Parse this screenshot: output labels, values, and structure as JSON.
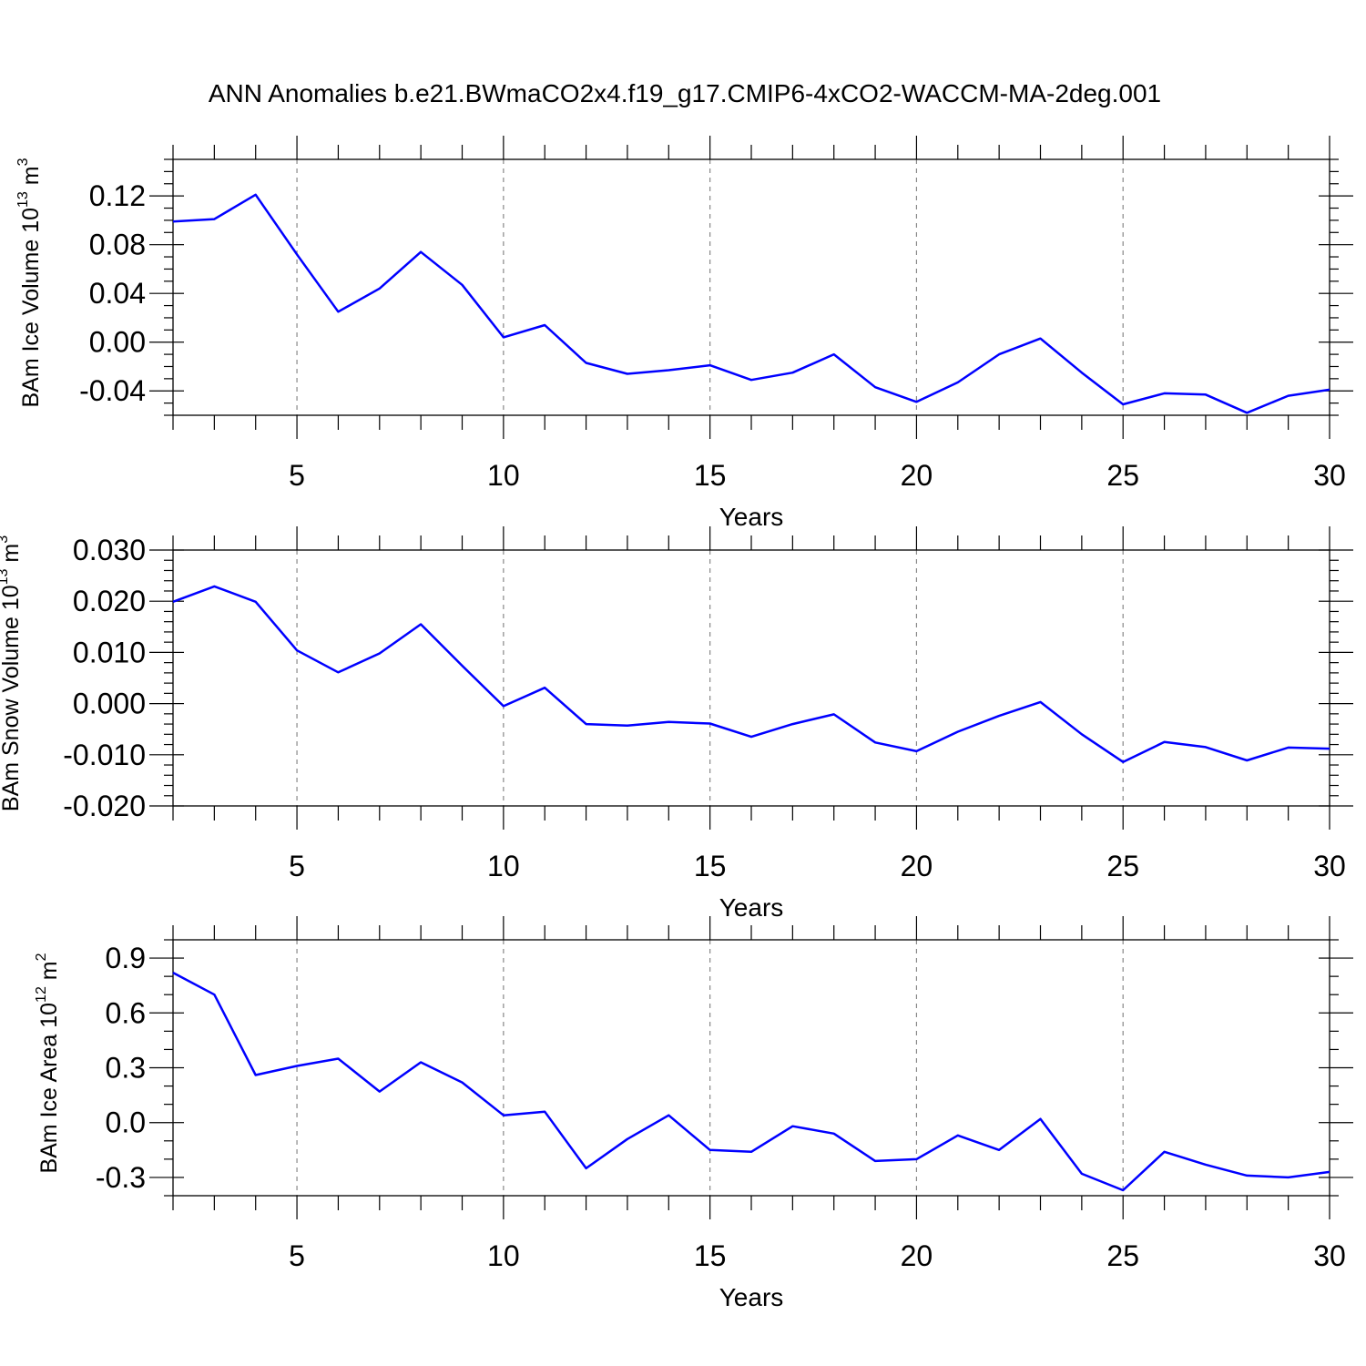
{
  "figure": {
    "title": "ANN Anomalies b.e21.BWmaCO2x4.f19_g17.CMIP6-4xCO2-WACCM-MA-2deg.001"
  },
  "colors": {
    "series": "#0000ff",
    "grid": "#888888",
    "axis": "#000000"
  },
  "chart_data": [
    {
      "type": "line",
      "ylabel": {
        "main": "BAm Ice Volume 10",
        "exp": "13",
        "unit": " m",
        "unit_exp": "3"
      },
      "xlabel": "Years",
      "xlim": [
        2,
        30
      ],
      "ylim": [
        -0.06,
        0.15
      ],
      "xticks": [
        5,
        10,
        15,
        20,
        25,
        30
      ],
      "xtick_labels": [
        "5",
        "10",
        "15",
        "20",
        "25",
        "30"
      ],
      "yticks": [
        0.12,
        0.08,
        0.04,
        0.0,
        -0.04
      ],
      "ytick_labels": [
        "0.12",
        "0.08",
        "0.04",
        "0.00",
        "-0.04"
      ],
      "yminor_step": 0.01,
      "grid": "vertical-dashed",
      "x": [
        2,
        3,
        4,
        5,
        6,
        7,
        8,
        9,
        10,
        11,
        12,
        13,
        14,
        15,
        16,
        17,
        18,
        19,
        20,
        21,
        22,
        23,
        24,
        25,
        26,
        27,
        28,
        29,
        30
      ],
      "values": [
        0.099,
        0.101,
        0.121,
        0.072,
        0.025,
        0.044,
        0.074,
        0.047,
        0.004,
        0.014,
        -0.017,
        -0.026,
        -0.023,
        -0.019,
        -0.031,
        -0.025,
        -0.01,
        -0.037,
        -0.049,
        -0.033,
        -0.01,
        0.003,
        -0.025,
        -0.051,
        -0.042,
        -0.043,
        -0.058,
        -0.044,
        -0.039
      ]
    },
    {
      "type": "line",
      "ylabel": {
        "main": "BAm Snow Volume 10",
        "exp": "13",
        "unit": " m",
        "unit_exp": "3"
      },
      "xlabel": "Years",
      "xlim": [
        2,
        30
      ],
      "ylim": [
        -0.02,
        0.03
      ],
      "xticks": [
        5,
        10,
        15,
        20,
        25,
        30
      ],
      "xtick_labels": [
        "5",
        "10",
        "15",
        "20",
        "25",
        "30"
      ],
      "yticks": [
        0.03,
        0.02,
        0.01,
        0.0,
        -0.01,
        -0.02
      ],
      "ytick_labels": [
        "0.030",
        "0.020",
        "0.010",
        "0.000",
        "-0.010",
        "-0.020"
      ],
      "yminor_step": 0.002,
      "grid": "vertical-dashed",
      "x": [
        2,
        3,
        4,
        5,
        6,
        7,
        8,
        9,
        10,
        11,
        12,
        13,
        14,
        15,
        16,
        17,
        18,
        19,
        20,
        21,
        22,
        23,
        24,
        25,
        26,
        27,
        28,
        29,
        30
      ],
      "values": [
        0.0199,
        0.0229,
        0.0199,
        0.0104,
        0.0061,
        0.0098,
        0.0155,
        0.0074,
        -0.0005,
        0.0031,
        -0.004,
        -0.0043,
        -0.0036,
        -0.0039,
        -0.0065,
        -0.004,
        -0.0021,
        -0.0076,
        -0.0093,
        -0.0055,
        -0.0024,
        0.0003,
        -0.006,
        -0.0114,
        -0.0075,
        -0.0085,
        -0.0111,
        -0.0086,
        -0.0088
      ]
    },
    {
      "type": "line",
      "ylabel": {
        "main": "BAm Ice Area 10",
        "exp": "12",
        "unit": " m",
        "unit_exp": "2"
      },
      "xlabel": "Years",
      "xlim": [
        2,
        30
      ],
      "ylim": [
        -0.4,
        1.0
      ],
      "xticks": [
        5,
        10,
        15,
        20,
        25,
        30
      ],
      "xtick_labels": [
        "5",
        "10",
        "15",
        "20",
        "25",
        "30"
      ],
      "yticks": [
        0.9,
        0.6,
        0.3,
        0.0,
        -0.3
      ],
      "ytick_labels": [
        "0.9",
        "0.6",
        "0.3",
        "0.0",
        "-0.3"
      ],
      "yminor_step": 0.1,
      "grid": "vertical-dashed",
      "x": [
        2,
        3,
        4,
        5,
        6,
        7,
        8,
        9,
        10,
        11,
        12,
        13,
        14,
        15,
        16,
        17,
        18,
        19,
        20,
        21,
        22,
        23,
        24,
        25,
        26,
        27,
        28,
        29,
        30
      ],
      "values": [
        0.82,
        0.7,
        0.26,
        0.31,
        0.35,
        0.17,
        0.33,
        0.22,
        0.04,
        0.06,
        -0.25,
        -0.09,
        0.04,
        -0.15,
        -0.16,
        -0.02,
        -0.06,
        -0.21,
        -0.2,
        -0.07,
        -0.15,
        0.02,
        -0.28,
        -0.37,
        -0.16,
        -0.23,
        -0.29,
        -0.3,
        -0.27
      ]
    }
  ]
}
